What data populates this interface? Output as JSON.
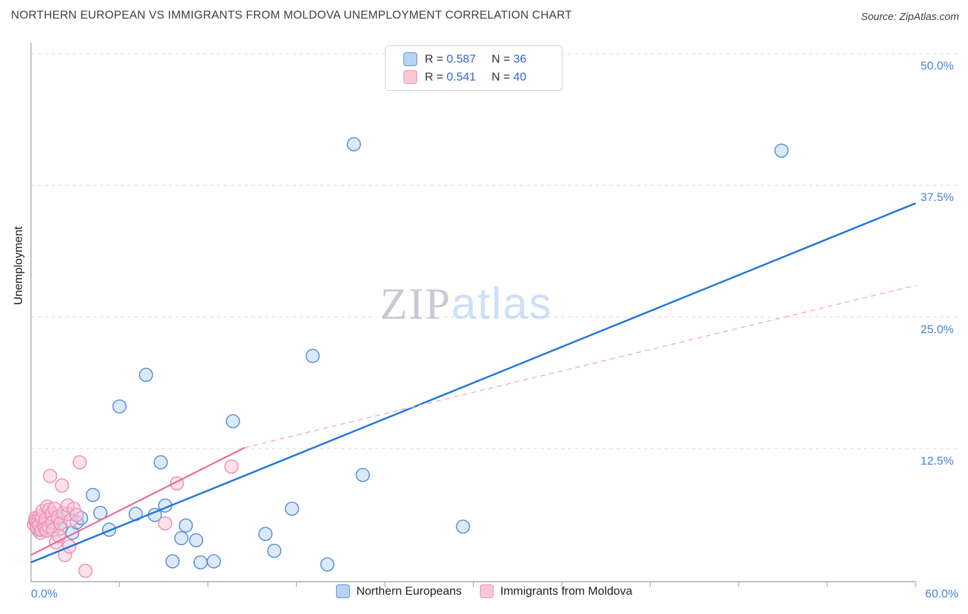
{
  "header": {
    "title": "NORTHERN EUROPEAN VS IMMIGRANTS FROM MOLDOVA UNEMPLOYMENT CORRELATION CHART",
    "source": "Source: ZipAtlas.com"
  },
  "ylabel": "Unemployment",
  "watermark": {
    "zip": "ZIP",
    "atlas": "atlas"
  },
  "legend_box": {
    "rows": [
      {
        "series": "Northern Europeans",
        "r_label": "R =",
        "r": "0.587",
        "n_label": "N =",
        "n": "36"
      },
      {
        "series": "Immigrants from Moldova",
        "r_label": "R =",
        "r": "0.541",
        "n_label": "N =",
        "n": "40"
      }
    ]
  },
  "axis": {
    "x_min_label": "0.0%",
    "x_max_label": "60.0%"
  },
  "bottom_legend": [
    {
      "label": "Northern Europeans"
    },
    {
      "label": "Immigrants from Moldova"
    }
  ],
  "chart_data": {
    "type": "scatter",
    "title": "NORTHERN EUROPEAN VS IMMIGRANTS FROM MOLDOVA UNEMPLOYMENT CORRELATION CHART",
    "xlabel": "",
    "ylabel": "Unemployment",
    "xlim": [
      0,
      60
    ],
    "ylim": [
      0,
      51
    ],
    "x_ticks_pct": [
      6,
      12,
      18,
      24,
      30,
      36,
      42,
      48,
      54,
      60
    ],
    "y_ticks": [
      {
        "value": 12.5,
        "label": "12.5%"
      },
      {
        "value": 25,
        "label": "25.0%"
      },
      {
        "value": 37.5,
        "label": "37.5%"
      },
      {
        "value": 50,
        "label": "50.0%"
      }
    ],
    "grid": {
      "color": "#dedede",
      "dash": "5 5"
    },
    "legend_position": "bottom",
    "series": [
      {
        "name": "Northern Europeans",
        "R": 0.587,
        "N": 36,
        "fill": "#b9d3f3",
        "stroke": "#5b8fd6",
        "points": [
          [
            0.3,
            5.6
          ],
          [
            0.5,
            4.8
          ],
          [
            0.8,
            5.4
          ],
          [
            1.2,
            6.1
          ],
          [
            1.5,
            5.1
          ],
          [
            1.8,
            5.8
          ],
          [
            2.0,
            4.9
          ],
          [
            2.5,
            6.3
          ],
          [
            2.8,
            4.5
          ],
          [
            3.1,
            5.5
          ],
          [
            3.4,
            5.9
          ],
          [
            4.2,
            8.1
          ],
          [
            4.7,
            6.4
          ],
          [
            5.3,
            4.8
          ],
          [
            6.0,
            16.5
          ],
          [
            7.1,
            6.3
          ],
          [
            7.8,
            19.5
          ],
          [
            8.4,
            6.2
          ],
          [
            8.8,
            11.2
          ],
          [
            9.1,
            7.1
          ],
          [
            9.6,
            1.8
          ],
          [
            10.2,
            4.0
          ],
          [
            10.5,
            5.2
          ],
          [
            11.2,
            3.8
          ],
          [
            11.5,
            1.7
          ],
          [
            12.4,
            1.8
          ],
          [
            13.7,
            15.1
          ],
          [
            15.9,
            4.4
          ],
          [
            16.5,
            2.8
          ],
          [
            17.7,
            6.8
          ],
          [
            19.1,
            21.3
          ],
          [
            20.1,
            1.5
          ],
          [
            21.9,
            41.4
          ],
          [
            22.5,
            10.0
          ],
          [
            29.3,
            5.1
          ],
          [
            50.9,
            40.8
          ]
        ]
      },
      {
        "name": "Immigrants from Moldova",
        "R": 0.541,
        "N": 40,
        "fill": "#fbc6d8",
        "stroke": "#ef8fb4",
        "points": [
          [
            0.2,
            5.3
          ],
          [
            0.3,
            5.9
          ],
          [
            0.35,
            5.7
          ],
          [
            0.4,
            5.0
          ],
          [
            0.5,
            5.6
          ],
          [
            0.55,
            5.2
          ],
          [
            0.6,
            6.1
          ],
          [
            0.65,
            4.5
          ],
          [
            0.7,
            4.8
          ],
          [
            0.75,
            5.9
          ],
          [
            0.8,
            6.6
          ],
          [
            0.9,
            5.3
          ],
          [
            0.95,
            4.9
          ],
          [
            1.0,
            5.8
          ],
          [
            1.05,
            4.7
          ],
          [
            1.1,
            7.0
          ],
          [
            1.2,
            5.1
          ],
          [
            1.25,
            6.7
          ],
          [
            1.3,
            9.9
          ],
          [
            1.4,
            6.3
          ],
          [
            1.45,
            5.5
          ],
          [
            1.5,
            4.8
          ],
          [
            1.6,
            6.8
          ],
          [
            1.7,
            3.6
          ],
          [
            1.8,
            6.0
          ],
          [
            1.9,
            4.2
          ],
          [
            2.0,
            5.4
          ],
          [
            2.1,
            9.0
          ],
          [
            2.2,
            6.4
          ],
          [
            2.3,
            2.4
          ],
          [
            2.5,
            7.1
          ],
          [
            2.6,
            3.2
          ],
          [
            2.7,
            5.7
          ],
          [
            2.9,
            6.8
          ],
          [
            3.1,
            6.2
          ],
          [
            3.3,
            11.2
          ],
          [
            3.7,
            0.9
          ],
          [
            9.1,
            5.4
          ],
          [
            9.9,
            9.2
          ],
          [
            13.6,
            10.8
          ]
        ]
      }
    ],
    "trend_lines": [
      {
        "series": "Northern Europeans",
        "style": "solid",
        "color": "#2275dc",
        "width": 2.6,
        "from": [
          0,
          1.7
        ],
        "to": [
          60,
          35.8
        ]
      },
      {
        "series": "Immigrants from Moldova",
        "style": "solid",
        "color": "#ec6495",
        "width": 2.2,
        "from": [
          0,
          2.4
        ],
        "to": [
          14.5,
          12.6
        ]
      },
      {
        "series": "Immigrants from Moldova",
        "style": "dashed",
        "color": "#f3a6c0",
        "width": 1.4,
        "from": [
          14.5,
          12.6
        ],
        "to": [
          60,
          28.0
        ]
      }
    ]
  }
}
